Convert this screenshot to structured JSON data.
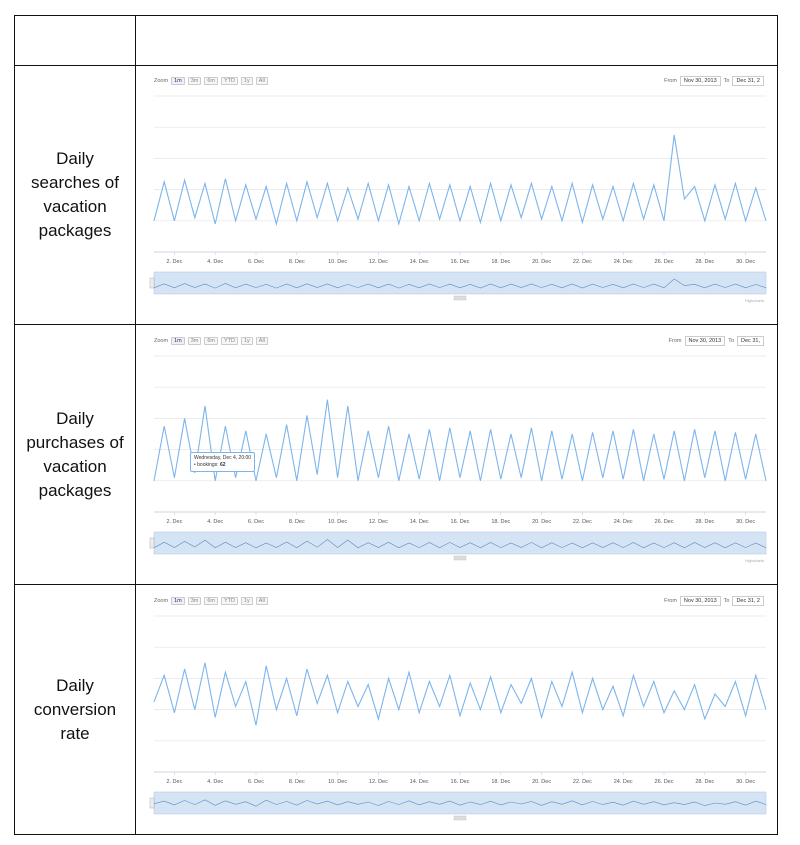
{
  "table": {
    "header_left": "",
    "header_right": "",
    "rows": [
      {
        "label": "Daily searches of vacation packages"
      },
      {
        "label": "Daily purchases of vacation packages"
      },
      {
        "label": "Daily conversion rate"
      }
    ]
  },
  "zoom": {
    "label": "Zoom",
    "buttons": [
      "1m",
      "3m",
      "6m",
      "YTD",
      "1y",
      "All"
    ],
    "active": "1m"
  },
  "range": {
    "from_label": "From",
    "from_value": "Nov 30, 2013",
    "to_label": "To",
    "to_values": [
      "Dec 31, 2",
      "Dec 31,",
      "Dec 31, 2"
    ]
  },
  "credit": "Highcharts",
  "colors": {
    "line": "#7cb5ec",
    "navigator_fill": "#d5e4f5",
    "grid": "#e6e6e6"
  },
  "tooltip": {
    "line1": "Wednesday, Dec 4, 20:00",
    "line2_prefix": "• bookings:",
    "line2_value": "62"
  },
  "chart_data": [
    {
      "type": "line",
      "title": "",
      "xlabel": "",
      "ylabel": "",
      "x_ticks": [
        "2. Dec",
        "4. Dec",
        "6. Dec",
        "8. Dec",
        "10. Dec",
        "12. Dec",
        "14. Dec",
        "16. Dec",
        "18. Dec",
        "20. Dec",
        "22. Dec",
        "24. Dec",
        "26. Dec",
        "28. Dec",
        "30. Dec"
      ],
      "xlim": [
        1,
        31
      ],
      "ylim": [
        0,
        100
      ],
      "grid": true,
      "series": [
        {
          "values": [
            20,
            45,
            20,
            46,
            22,
            44,
            18,
            47,
            20,
            43,
            21,
            42,
            18,
            44,
            20,
            45,
            22,
            44,
            20,
            41,
            21,
            44,
            20,
            43,
            18,
            42,
            20,
            44,
            21,
            43,
            20,
            42,
            19,
            44,
            20,
            43,
            22,
            44,
            21,
            42,
            20,
            44,
            19,
            43,
            21,
            42,
            20,
            44,
            21,
            43,
            20,
            75,
            34,
            42,
            20,
            43,
            21,
            44,
            20,
            41,
            20
          ]
        }
      ]
    },
    {
      "type": "line",
      "title": "",
      "xlabel": "",
      "ylabel": "",
      "x_ticks": [
        "2. Dec",
        "4. Dec",
        "6. Dec",
        "8. Dec",
        "10. Dec",
        "12. Dec",
        "14. Dec",
        "16. Dec",
        "18. Dec",
        "20. Dec",
        "22. Dec",
        "24. Dec",
        "26. Dec",
        "28. Dec",
        "30. Dec"
      ],
      "xlim": [
        1,
        31
      ],
      "ylim": [
        0,
        100
      ],
      "grid": true,
      "series": [
        {
          "values": [
            20,
            55,
            22,
            60,
            25,
            68,
            20,
            55,
            22,
            52,
            20,
            50,
            22,
            56,
            20,
            62,
            24,
            72,
            22,
            68,
            20,
            52,
            22,
            55,
            20,
            50,
            21,
            53,
            20,
            54,
            22,
            52,
            20,
            53,
            21,
            50,
            22,
            54,
            20,
            52,
            21,
            50,
            20,
            51,
            22,
            52,
            21,
            53,
            20,
            50,
            21,
            52,
            20,
            53,
            22,
            52,
            20,
            51,
            21,
            50,
            20
          ]
        }
      ]
    },
    {
      "type": "line",
      "title": "",
      "xlabel": "",
      "ylabel": "",
      "x_ticks": [
        "2. Dec",
        "4. Dec",
        "6. Dec",
        "8. Dec",
        "10. Dec",
        "12. Dec",
        "14. Dec",
        "16. Dec",
        "18. Dec",
        "20. Dec",
        "22. Dec",
        "24. Dec",
        "26. Dec",
        "28. Dec",
        "30. Dec"
      ],
      "xlim": [
        1,
        31
      ],
      "ylim": [
        0,
        100
      ],
      "grid": true,
      "series": [
        {
          "values": [
            45,
            62,
            38,
            66,
            40,
            70,
            35,
            64,
            42,
            58,
            30,
            68,
            40,
            60,
            36,
            66,
            44,
            62,
            38,
            58,
            42,
            56,
            34,
            60,
            40,
            64,
            38,
            58,
            42,
            62,
            36,
            57,
            40,
            61,
            38,
            56,
            44,
            60,
            35,
            58,
            42,
            64,
            38,
            60,
            40,
            55,
            36,
            62,
            42,
            58,
            38,
            52,
            40,
            56,
            34,
            50,
            42,
            58,
            36,
            62,
            40
          ]
        }
      ]
    }
  ]
}
